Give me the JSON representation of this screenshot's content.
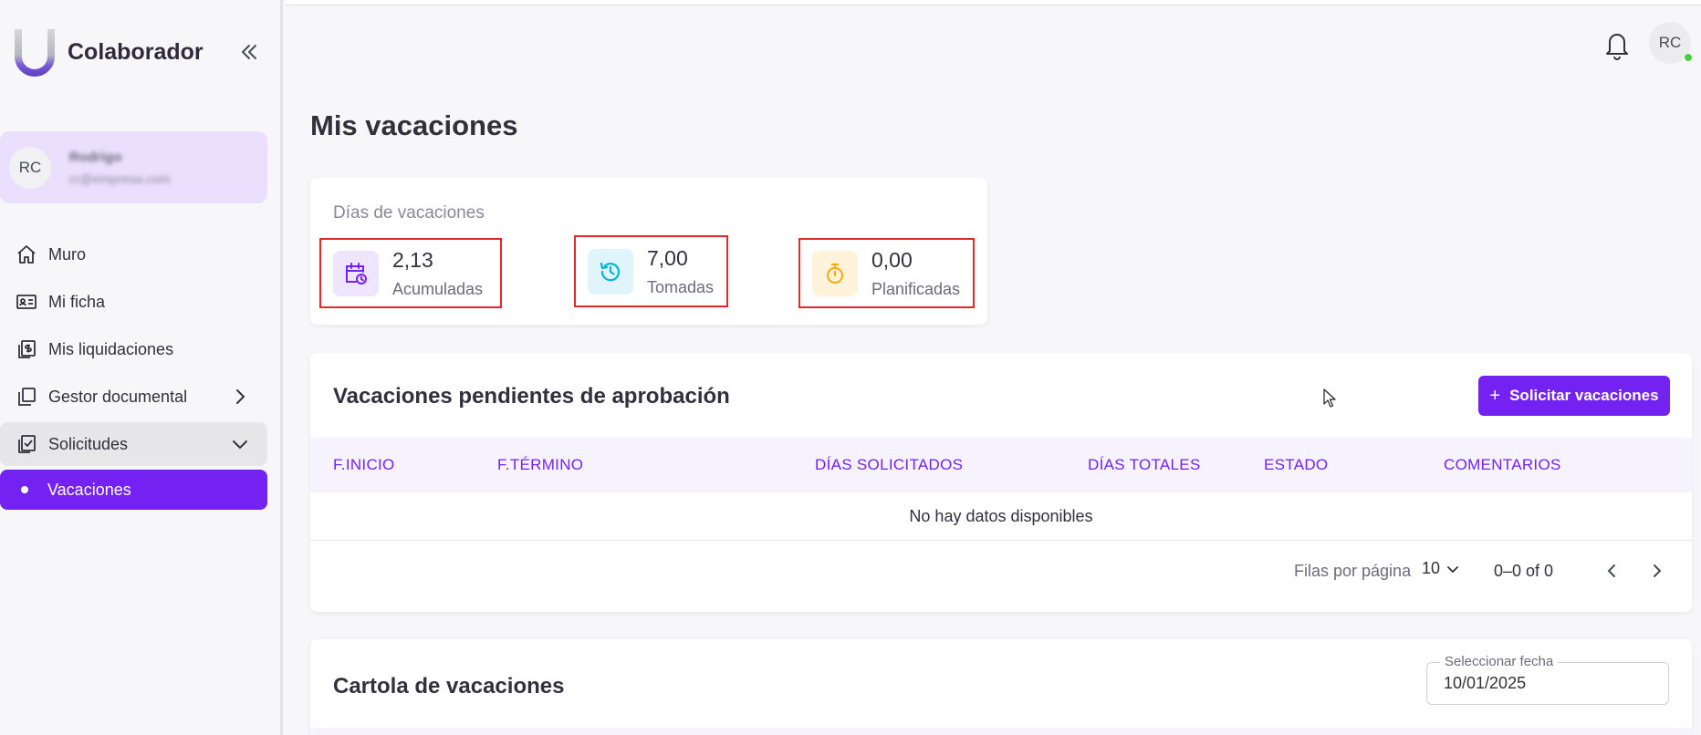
{
  "sidebar": {
    "brand_title": "Colaborador",
    "user": {
      "initials": "RC",
      "name": "Rodrigo",
      "email": "rc@empresa.com"
    },
    "items": [
      {
        "label": "Muro",
        "icon": "home-icon"
      },
      {
        "label": "Mi ficha",
        "icon": "id-card-icon"
      },
      {
        "label": "Mis liquidaciones",
        "icon": "payslip-icon"
      },
      {
        "label": "Gestor documental",
        "icon": "documents-icon"
      },
      {
        "label": "Solicitudes",
        "icon": "checklist-icon"
      }
    ],
    "subitem": {
      "label": "Vacaciones"
    }
  },
  "header": {
    "avatar_initials": "RC",
    "status_color": "#44d13b"
  },
  "page": {
    "title": "Mis vacaciones"
  },
  "days": {
    "label": "Días de vacaciones",
    "stats": [
      {
        "value": "2,13",
        "label": "Acumuladas",
        "icon": "calendar-clock-icon",
        "color": "#7322f2",
        "bg": "#efe5fe"
      },
      {
        "value": "7,00",
        "label": "Tomadas",
        "icon": "history-icon",
        "color": "#00b5d6",
        "bg": "#dff5fb"
      },
      {
        "value": "0,00",
        "label": "Planificadas",
        "icon": "stopwatch-icon",
        "color": "#f2b014",
        "bg": "#fff3dc"
      }
    ]
  },
  "pending": {
    "title": "Vacaciones pendientes de aprobación",
    "button_label": "Solicitar vacaciones",
    "columns": [
      "F.INICIO",
      "F.TÉRMINO",
      "DÍAS SOLICITADOS",
      "DÍAS TOTALES",
      "ESTADO",
      "COMENTARIOS"
    ],
    "empty_message": "No hay datos disponibles",
    "pager": {
      "rows_label": "Filas por página",
      "rows_value": "10",
      "range": "0–0 of 0"
    }
  },
  "cartola": {
    "title": "Cartola de vacaciones",
    "date_label": "Seleccionar fecha",
    "date_value": "10/01/2025"
  },
  "colors": {
    "accent": "#7322f2",
    "highlight_border": "#e02a2a"
  }
}
